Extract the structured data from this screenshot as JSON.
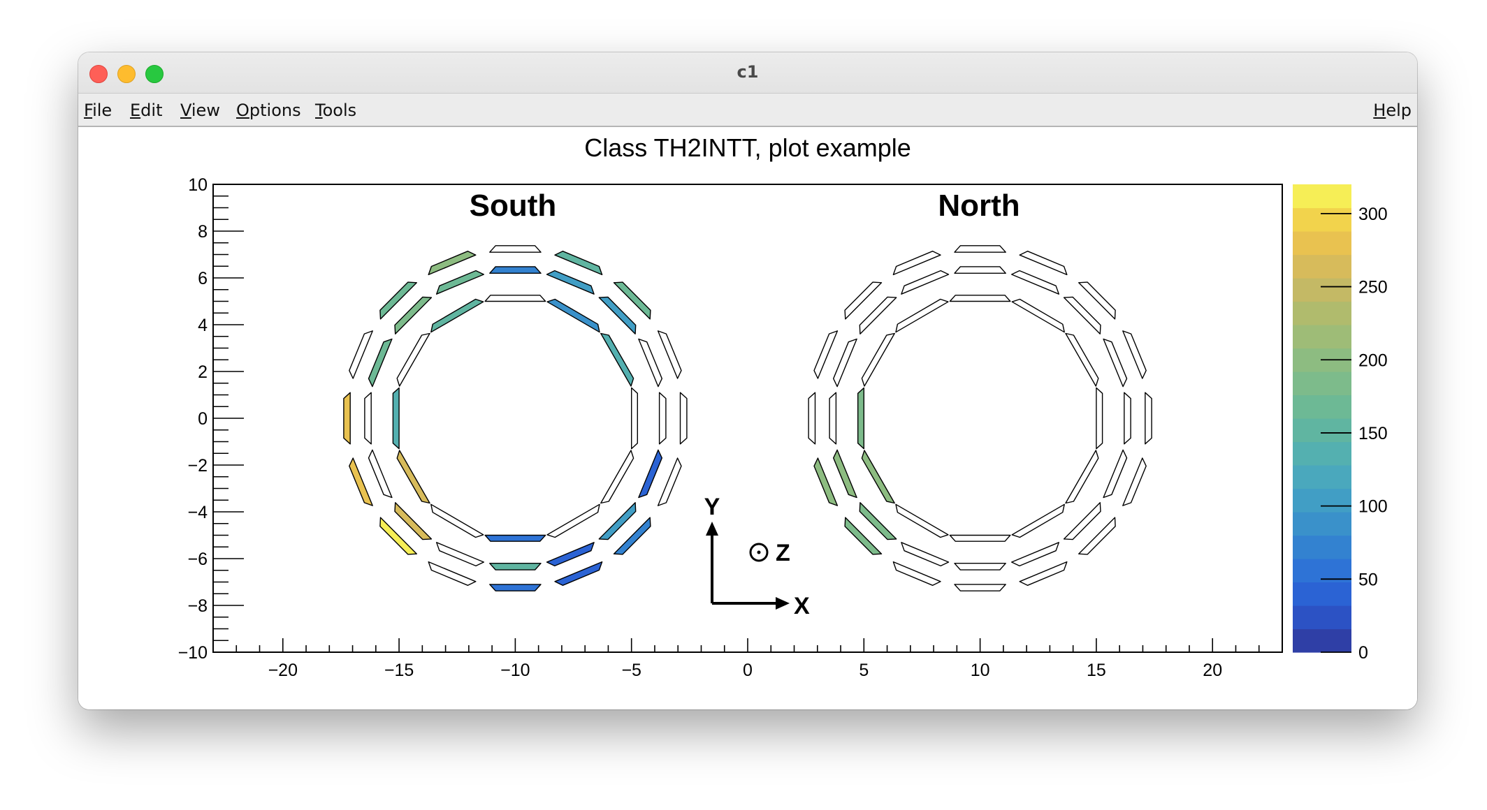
{
  "window": {
    "title": "c1"
  },
  "menu": {
    "file": "File",
    "edit": "Edit",
    "view": "View",
    "options": "Options",
    "tools": "Tools",
    "help": "Help"
  },
  "chart_data": {
    "type": "heatmap",
    "title": "Class TH2INTT, plot example",
    "xlabel": "",
    "ylabel": "",
    "xlim": [
      -23,
      23
    ],
    "ylim": [
      -10,
      10
    ],
    "x_ticks": [
      -20,
      -15,
      -10,
      -5,
      0,
      5,
      10,
      15,
      20
    ],
    "y_ticks": [
      10,
      8,
      6,
      4,
      2,
      0,
      -2,
      -4,
      -6,
      -8,
      -10
    ],
    "x_tick_labels": [
      "−20",
      "−15",
      "−10",
      "−5",
      "0",
      "5",
      "10",
      "15",
      "20"
    ],
    "y_tick_labels": [
      "10",
      "8",
      "6",
      "4",
      "2",
      "0",
      "−2",
      "−4",
      "−6",
      "−8",
      "−10"
    ],
    "z_range": [
      0,
      320
    ],
    "z_ticks": [
      0,
      50,
      100,
      150,
      200,
      250,
      300
    ],
    "colorbar_position": "right",
    "colormap": "parula-like (blue to yellow), 20 levels",
    "palette_colors": [
      "#2f3fa6",
      "#2c52c4",
      "#2b63d4",
      "#2e73d6",
      "#3382d0",
      "#3a91ca",
      "#419ec5",
      "#4aa8bd",
      "#54b0b0",
      "#60b5a1",
      "#6db995",
      "#7dbb8b",
      "#8dbc81",
      "#9ebc77",
      "#b0bb6d",
      "#c4b965",
      "#d7bb5b",
      "#e9c250",
      "#f2d34c",
      "#f6ee56"
    ],
    "empty_color": "#ffffff",
    "annotations": {
      "south_label": "South",
      "north_label": "North",
      "axis_x": "X",
      "axis_y": "Y",
      "axis_z": "Z"
    },
    "layers": [
      {
        "name": "inner",
        "radius": 5.0,
        "ladders": 12
      },
      {
        "name": "middle",
        "radius": 6.2,
        "ladders": 16
      },
      {
        "name": "outer",
        "radius": 7.1,
        "ladders": 16
      }
    ],
    "detectors": [
      {
        "name": "South",
        "center": [
          -10,
          0
        ],
        "bins": {
          "inner": [
            0,
            95,
            130,
            0,
            0,
            0,
            60,
            0,
            260,
            130,
            0,
            150
          ],
          "middle": [
            75,
            110,
            110,
            0,
            0,
            40,
            100,
            45,
            150,
            0,
            270,
            0,
            0,
            170,
            185,
            175
          ],
          "outer": [
            0,
            150,
            175,
            0,
            0,
            0,
            75,
            40,
            55,
            0,
            310,
            275,
            275,
            0,
            175,
            195
          ]
        }
      },
      {
        "name": "North",
        "center": [
          10,
          0
        ],
        "bins": {
          "inner": [
            0,
            0,
            0,
            0,
            0,
            0,
            0,
            0,
            195,
            190,
            0,
            0
          ],
          "middle": [
            0,
            0,
            0,
            0,
            0,
            0,
            0,
            0,
            0,
            0,
            190,
            195,
            0,
            0,
            0,
            0
          ],
          "outer": [
            0,
            0,
            0,
            0,
            0,
            0,
            0,
            0,
            0,
            0,
            190,
            195,
            0,
            0,
            0,
            0
          ]
        }
      }
    ]
  }
}
